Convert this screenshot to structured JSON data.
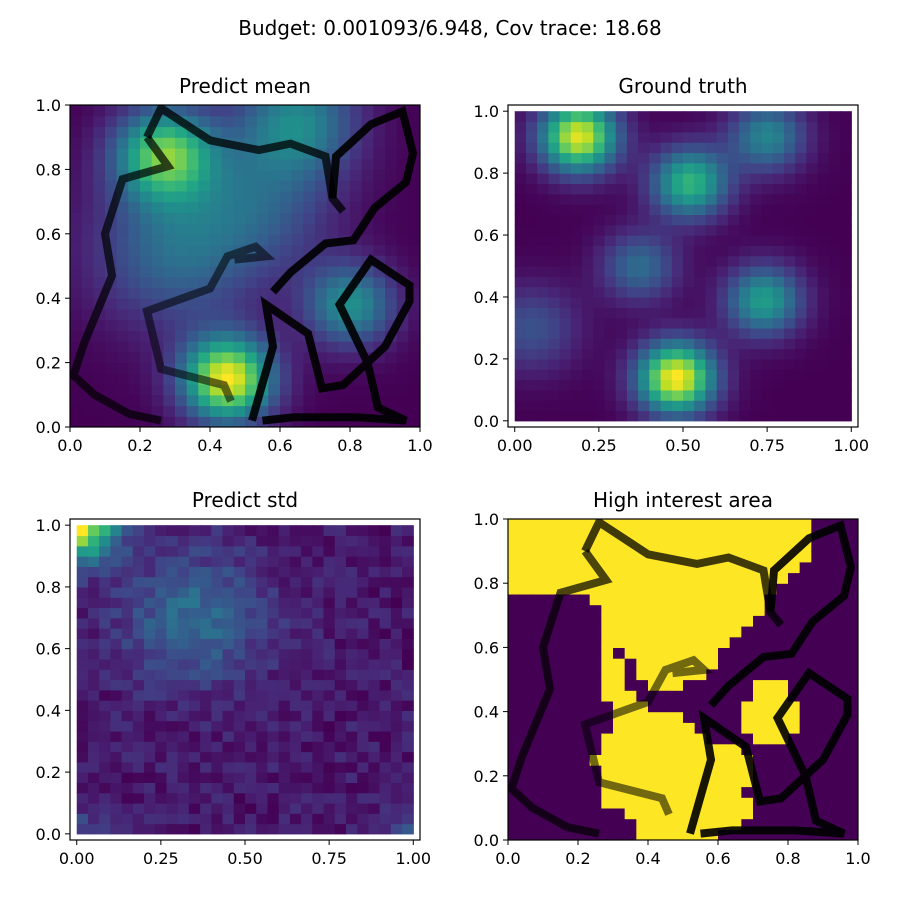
{
  "figure": {
    "suptitle": "Budget: 0.001093/6.948,  Cov trace: 18.68"
  },
  "colors": {
    "viridis_dark": "#440154",
    "viridis_yellow": "#fde725",
    "path_color": "#000000"
  },
  "chart_data": [
    {
      "id": "predict-mean",
      "type": "heatmap",
      "title": "Predict mean",
      "colormap": "viridis",
      "xlim": [
        0.0,
        1.0
      ],
      "ylim": [
        0.0,
        1.0
      ],
      "xticks": [
        "0.0",
        "0.2",
        "0.4",
        "0.6",
        "0.8",
        "1.0"
      ],
      "yticks": [
        "0.0",
        "0.2",
        "0.4",
        "0.6",
        "0.8",
        "1.0"
      ],
      "tick_values": [
        0.0,
        0.2,
        0.4,
        0.6,
        0.8,
        1.0
      ],
      "field": {
        "base": 0.1,
        "blobs": [
          {
            "x": 0.45,
            "y": 0.15,
            "a": 1.0,
            "s": 0.09
          },
          {
            "x": 0.27,
            "y": 0.85,
            "a": 0.75,
            "s": 0.1
          },
          {
            "x": 0.65,
            "y": 0.95,
            "a": 0.45,
            "s": 0.12
          },
          {
            "x": 0.8,
            "y": 0.38,
            "a": 0.5,
            "s": 0.09
          },
          {
            "x": 0.3,
            "y": 0.55,
            "a": 0.35,
            "s": 0.17
          },
          {
            "x": 0.55,
            "y": 0.7,
            "a": 0.25,
            "s": 0.15
          }
        ]
      },
      "paths": [
        {
          "alpha": 0.75,
          "points": [
            [
              0.22,
              0.9
            ],
            [
              0.26,
              0.99
            ],
            [
              0.4,
              0.89
            ],
            [
              0.54,
              0.86
            ],
            [
              0.63,
              0.88
            ],
            [
              0.73,
              0.84
            ],
            [
              0.75,
              0.71
            ],
            [
              0.78,
              0.67
            ]
          ]
        },
        {
          "alpha": 0.7,
          "points": [
            [
              0.22,
              0.9
            ],
            [
              0.28,
              0.81
            ],
            [
              0.15,
              0.77
            ],
            [
              0.1,
              0.6
            ],
            [
              0.12,
              0.47
            ],
            [
              0.04,
              0.26
            ],
            [
              0.01,
              0.16
            ],
            [
              0.07,
              0.1
            ],
            [
              0.17,
              0.04
            ],
            [
              0.26,
              0.02
            ]
          ]
        },
        {
          "alpha": 0.55,
          "points": [
            [
              0.46,
              0.08
            ],
            [
              0.44,
              0.13
            ],
            [
              0.26,
              0.18
            ],
            [
              0.22,
              0.36
            ],
            [
              0.4,
              0.43
            ],
            [
              0.45,
              0.53
            ],
            [
              0.53,
              0.56
            ],
            [
              0.56,
              0.53
            ],
            [
              0.47,
              0.52
            ]
          ]
        },
        {
          "alpha": 0.9,
          "points": [
            [
              0.58,
              0.42
            ],
            [
              0.63,
              0.48
            ],
            [
              0.73,
              0.57
            ],
            [
              0.81,
              0.58
            ],
            [
              0.87,
              0.68
            ],
            [
              0.96,
              0.76
            ],
            [
              0.98,
              0.85
            ],
            [
              0.95,
              0.98
            ],
            [
              0.86,
              0.94
            ],
            [
              0.76,
              0.84
            ],
            [
              0.75,
              0.71
            ]
          ]
        },
        {
          "alpha": 0.9,
          "points": [
            [
              0.55,
              0.02
            ],
            [
              0.64,
              0.03
            ],
            [
              0.82,
              0.03
            ],
            [
              0.96,
              0.02
            ],
            [
              0.88,
              0.06
            ],
            [
              0.85,
              0.2
            ],
            [
              0.77,
              0.38
            ],
            [
              0.86,
              0.52
            ],
            [
              0.97,
              0.44
            ],
            [
              0.97,
              0.39
            ],
            [
              0.9,
              0.25
            ],
            [
              0.78,
              0.13
            ],
            [
              0.72,
              0.12
            ],
            [
              0.68,
              0.29
            ],
            [
              0.56,
              0.38
            ],
            [
              0.58,
              0.25
            ],
            [
              0.52,
              0.02
            ]
          ]
        }
      ]
    },
    {
      "id": "ground-truth",
      "type": "heatmap",
      "title": "Ground truth",
      "colormap": "viridis",
      "xlim": [
        -0.02,
        1.02
      ],
      "ylim": [
        -0.02,
        1.02
      ],
      "xticks": [
        "0.00",
        "0.25",
        "0.50",
        "0.75",
        "1.00"
      ],
      "yticks": [
        "0.0",
        "0.2",
        "0.4",
        "0.6",
        "0.8",
        "1.0"
      ],
      "xtick_values": [
        0.0,
        0.25,
        0.5,
        0.75,
        1.0
      ],
      "ytick_values": [
        0.0,
        0.2,
        0.4,
        0.6,
        0.8,
        1.0
      ],
      "field": {
        "base": 0.05,
        "blobs": [
          {
            "x": 0.48,
            "y": 0.14,
            "a": 1.0,
            "s": 0.08
          },
          {
            "x": 0.19,
            "y": 0.92,
            "a": 0.95,
            "s": 0.08
          },
          {
            "x": 0.52,
            "y": 0.77,
            "a": 0.65,
            "s": 0.08
          },
          {
            "x": 0.74,
            "y": 0.39,
            "a": 0.55,
            "s": 0.08
          },
          {
            "x": 0.75,
            "y": 0.92,
            "a": 0.45,
            "s": 0.08
          },
          {
            "x": 0.37,
            "y": 0.5,
            "a": 0.35,
            "s": 0.08
          },
          {
            "x": 0.05,
            "y": 0.3,
            "a": 0.25,
            "s": 0.1
          }
        ]
      },
      "paths": []
    },
    {
      "id": "predict-std",
      "type": "heatmap",
      "title": "Predict std",
      "colormap": "viridis",
      "xlim": [
        -0.02,
        1.02
      ],
      "ylim": [
        -0.02,
        1.02
      ],
      "xticks": [
        "0.00",
        "0.25",
        "0.50",
        "0.75",
        "1.00"
      ],
      "yticks": [
        "0.0",
        "0.2",
        "0.4",
        "0.6",
        "0.8",
        "1.0"
      ],
      "xtick_values": [
        0.0,
        0.25,
        0.5,
        0.75,
        1.0
      ],
      "ytick_values": [
        0.0,
        0.2,
        0.4,
        0.6,
        0.8,
        1.0
      ],
      "field": {
        "base": 0.26,
        "blobs": [
          {
            "x": 0.0,
            "y": 1.0,
            "a": 0.4,
            "s": 0.08
          },
          {
            "x": 0.35,
            "y": 0.7,
            "a": 0.12,
            "s": 0.15
          },
          {
            "x": 1.0,
            "y": 0.0,
            "a": 0.1,
            "s": 0.06
          },
          {
            "x": 0.0,
            "y": 0.0,
            "a": 0.08,
            "s": 0.06
          }
        ]
      },
      "paths": []
    },
    {
      "id": "high-interest-area",
      "type": "heatmap",
      "title": "High interest area",
      "colormap": "binary-viridis",
      "xlim": [
        0.0,
        1.0
      ],
      "ylim": [
        0.0,
        1.0
      ],
      "xticks": [
        "0.0",
        "0.2",
        "0.4",
        "0.6",
        "0.8",
        "1.0"
      ],
      "yticks": [
        "0.0",
        "0.2",
        "0.4",
        "0.6",
        "0.8",
        "1.0"
      ],
      "tick_values": [
        0.0,
        0.2,
        0.4,
        0.6,
        0.8,
        1.0
      ],
      "regions": [
        {
          "type": "poly",
          "points": [
            [
              0,
              0.73
            ],
            [
              0.04,
              0.78
            ],
            [
              0.1,
              0.78
            ],
            [
              0.14,
              0.76
            ],
            [
              0.18,
              0.78
            ],
            [
              0.24,
              0.74
            ],
            [
              0.26,
              0.7
            ],
            [
              0.3,
              0.62
            ],
            [
              0.34,
              0.58
            ],
            [
              0.38,
              0.52
            ],
            [
              0.41,
              0.48
            ],
            [
              0.44,
              0.45
            ],
            [
              0.52,
              0.49
            ],
            [
              0.58,
              0.53
            ],
            [
              0.62,
              0.62
            ],
            [
              0.67,
              0.65
            ],
            [
              0.72,
              0.72
            ],
            [
              0.77,
              0.79
            ],
            [
              0.82,
              0.82
            ],
            [
              0.87,
              0.9
            ],
            [
              0.87,
              1.0
            ],
            [
              0,
              1.0
            ]
          ]
        },
        {
          "type": "poly",
          "points": [
            [
              0.26,
              0.7
            ],
            [
              0.3,
              0.62
            ],
            [
              0.35,
              0.47
            ],
            [
              0.39,
              0.41
            ],
            [
              0.44,
              0.4
            ],
            [
              0.52,
              0.38
            ],
            [
              0.56,
              0.33
            ],
            [
              0.6,
              0.3
            ],
            [
              0.67,
              0.32
            ],
            [
              0.7,
              0.23
            ],
            [
              0.68,
              0.15
            ],
            [
              0.7,
              0.07
            ],
            [
              0.63,
              0.04
            ],
            [
              0.59,
              0.0
            ],
            [
              0.37,
              0.0
            ],
            [
              0.36,
              0.08
            ],
            [
              0.27,
              0.1
            ],
            [
              0.25,
              0.25
            ],
            [
              0.3,
              0.38
            ],
            [
              0.27,
              0.47
            ]
          ]
        },
        {
          "type": "poly",
          "points": [
            [
              0.68,
              0.43
            ],
            [
              0.72,
              0.49
            ],
            [
              0.78,
              0.5
            ],
            [
              0.81,
              0.44
            ],
            [
              0.84,
              0.38
            ],
            [
              0.81,
              0.3
            ],
            [
              0.74,
              0.29
            ],
            [
              0.68,
              0.33
            ]
          ]
        }
      ],
      "paths": [
        {
          "alpha": 0.75,
          "points": [
            [
              0.22,
              0.9
            ],
            [
              0.26,
              0.99
            ],
            [
              0.4,
              0.89
            ],
            [
              0.54,
              0.86
            ],
            [
              0.63,
              0.88
            ],
            [
              0.73,
              0.84
            ],
            [
              0.75,
              0.71
            ],
            [
              0.78,
              0.67
            ]
          ]
        },
        {
          "alpha": 0.7,
          "points": [
            [
              0.22,
              0.9
            ],
            [
              0.28,
              0.81
            ],
            [
              0.15,
              0.77
            ],
            [
              0.1,
              0.6
            ],
            [
              0.12,
              0.47
            ],
            [
              0.04,
              0.26
            ],
            [
              0.01,
              0.16
            ],
            [
              0.07,
              0.1
            ],
            [
              0.17,
              0.04
            ],
            [
              0.26,
              0.02
            ]
          ]
        },
        {
          "alpha": 0.55,
          "points": [
            [
              0.46,
              0.08
            ],
            [
              0.44,
              0.13
            ],
            [
              0.26,
              0.18
            ],
            [
              0.22,
              0.36
            ],
            [
              0.4,
              0.43
            ],
            [
              0.45,
              0.53
            ],
            [
              0.53,
              0.56
            ],
            [
              0.56,
              0.53
            ],
            [
              0.47,
              0.52
            ]
          ]
        },
        {
          "alpha": 0.9,
          "points": [
            [
              0.58,
              0.42
            ],
            [
              0.63,
              0.48
            ],
            [
              0.73,
              0.57
            ],
            [
              0.81,
              0.58
            ],
            [
              0.87,
              0.68
            ],
            [
              0.96,
              0.76
            ],
            [
              0.98,
              0.85
            ],
            [
              0.95,
              0.98
            ],
            [
              0.86,
              0.94
            ],
            [
              0.76,
              0.84
            ],
            [
              0.75,
              0.71
            ]
          ]
        },
        {
          "alpha": 0.9,
          "points": [
            [
              0.55,
              0.02
            ],
            [
              0.64,
              0.03
            ],
            [
              0.82,
              0.03
            ],
            [
              0.96,
              0.02
            ],
            [
              0.88,
              0.06
            ],
            [
              0.85,
              0.2
            ],
            [
              0.77,
              0.38
            ],
            [
              0.86,
              0.52
            ],
            [
              0.97,
              0.44
            ],
            [
              0.97,
              0.39
            ],
            [
              0.9,
              0.25
            ],
            [
              0.78,
              0.13
            ],
            [
              0.72,
              0.12
            ],
            [
              0.68,
              0.29
            ],
            [
              0.56,
              0.38
            ],
            [
              0.58,
              0.25
            ],
            [
              0.52,
              0.02
            ]
          ]
        }
      ]
    }
  ]
}
